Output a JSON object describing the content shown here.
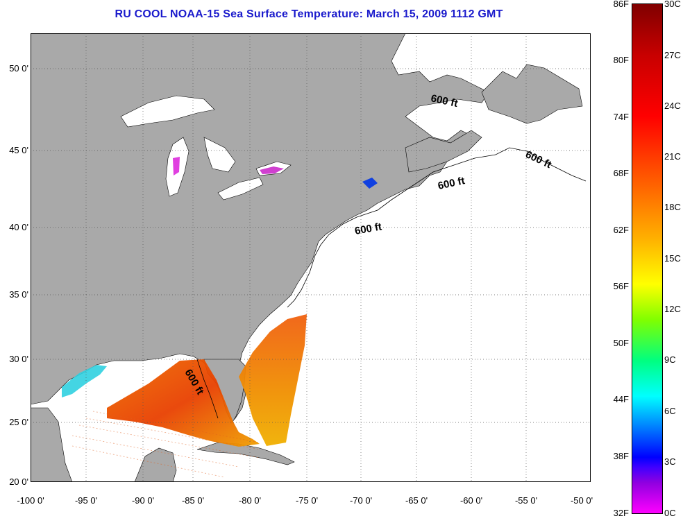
{
  "title": "RU COOL  NOAA-15  Sea Surface Temperature:  March 15, 2009 1112 GMT",
  "map": {
    "lat_labels": [
      "50 0'",
      "45 0'",
      "40 0'",
      "35 0'",
      "30 0'",
      "25 0'",
      "20 0'"
    ],
    "lon_labels": [
      "-100 0'",
      "-95 0'",
      "-90 0'",
      "-85 0'",
      "-80 0'",
      "-75 0'",
      "-70 0'",
      "-65 0'",
      "-60 0'",
      "-55 0'",
      "-50 0'"
    ],
    "isobath_labels": [
      "600 ft",
      "600 ft",
      "600 ft",
      "600 ft",
      "600 ft"
    ],
    "colors": {
      "land": "#a9a9a9",
      "water": "#ffffff",
      "grid": "#555555",
      "title": "#1a1acc"
    }
  },
  "colorbar": {
    "fahrenheit_labels": [
      "86F",
      "80F",
      "74F",
      "68F",
      "62F",
      "56F",
      "50F",
      "44F",
      "38F",
      "32F"
    ],
    "celsius_labels": [
      "30C",
      "27C",
      "24C",
      "21C",
      "18C",
      "15C",
      "12C",
      "9C",
      "6C",
      "3C",
      "0C"
    ],
    "range_c": [
      0,
      30
    ],
    "range_f": [
      32,
      86
    ]
  }
}
